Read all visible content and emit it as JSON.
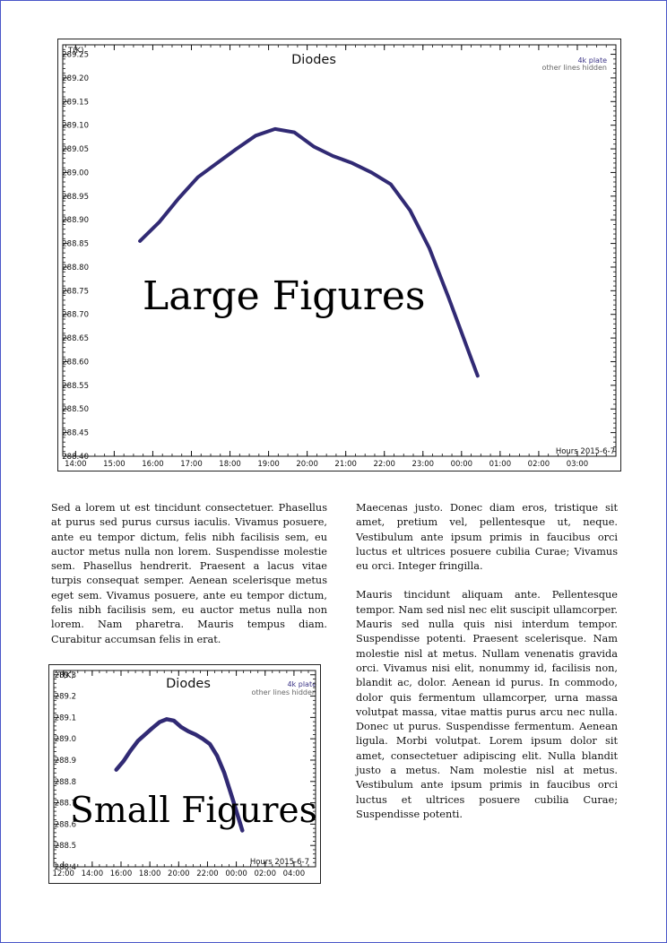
{
  "figures": [
    {
      "title": "Diodes",
      "ylabel": "T(K)",
      "legend_line1": "4k plate",
      "legend_line2": "other lines hidden",
      "xlabel": "Hours 2015-6-7",
      "overlay": "Large Figures",
      "line_color": "#312a74"
    },
    {
      "title": "Diodes",
      "ylabel": "T(K)",
      "legend_line1": "4k plate",
      "legend_line2": "other lines hidden",
      "xlabel": "Hours 2015-6-7",
      "overlay": "Small Figures",
      "line_color": "#312a74"
    }
  ],
  "chart_data": [
    {
      "type": "line",
      "title": "Diodes",
      "ylabel": "T(K)",
      "xlabel": "Hours 2015-6-7",
      "xlim": [
        "13:40",
        "04:00"
      ],
      "ylim": [
        288.4,
        289.27
      ],
      "x_ticks": [
        "14:00",
        "15:00",
        "16:00",
        "17:00",
        "18:00",
        "19:00",
        "20:00",
        "21:00",
        "22:00",
        "23:00",
        "00:00",
        "01:00",
        "02:00",
        "03:00"
      ],
      "y_ticks": [
        "288.40",
        "288.45",
        "288.50",
        "288.55",
        "288.60",
        "288.65",
        "288.70",
        "288.75",
        "288.80",
        "288.85",
        "288.90",
        "288.95",
        "289.00",
        "289.05",
        "289.10",
        "289.15",
        "289.20",
        "289.25"
      ],
      "series": [
        {
          "name": "4k plate",
          "x": [
            "15:40",
            "16:10",
            "16:40",
            "17:10",
            "17:40",
            "18:10",
            "18:40",
            "19:10",
            "19:40",
            "20:10",
            "20:40",
            "21:10",
            "21:40",
            "22:10",
            "22:40",
            "23:10",
            "23:40",
            "00:10",
            "00:25"
          ],
          "values": [
            288.855,
            288.895,
            288.945,
            288.99,
            289.02,
            289.05,
            289.078,
            289.092,
            289.085,
            289.055,
            289.035,
            289.02,
            289.0,
            288.975,
            288.92,
            288.84,
            288.735,
            288.625,
            288.57
          ]
        }
      ]
    },
    {
      "type": "line",
      "title": "Diodes",
      "ylabel": "T(K)",
      "xlabel": "Hours 2015-6-7",
      "xlim": [
        "11:20",
        "05:30"
      ],
      "ylim": [
        288.4,
        289.32
      ],
      "x_ticks": [
        "12:00",
        "14:00",
        "16:00",
        "18:00",
        "20:00",
        "22:00",
        "00:00",
        "02:00",
        "04:00"
      ],
      "y_ticks": [
        "288.4",
        "288.5",
        "288.6",
        "288.7",
        "288.8",
        "288.9",
        "289.0",
        "289.1",
        "289.2",
        "289.3"
      ],
      "series": [
        {
          "name": "4k plate",
          "x": [
            "15:40",
            "16:10",
            "16:40",
            "17:10",
            "17:40",
            "18:10",
            "18:40",
            "19:10",
            "19:40",
            "20:10",
            "20:40",
            "21:10",
            "21:40",
            "22:10",
            "22:40",
            "23:10",
            "23:40",
            "00:10",
            "00:25"
          ],
          "values": [
            288.855,
            288.895,
            288.945,
            288.99,
            289.02,
            289.05,
            289.078,
            289.092,
            289.085,
            289.055,
            289.035,
            289.02,
            289.0,
            288.975,
            288.92,
            288.84,
            288.735,
            288.625,
            288.57
          ]
        }
      ]
    }
  ],
  "text": {
    "left_p1": "Sed a lorem ut est tincidunt consectetuer. Phasellus at purus sed purus cursus iaculis. Vivamus posuere, ante eu tempor dictum, felis nibh facilisis sem, eu auctor metus nulla non lorem. Suspendisse molestie sem. Phasellus hendrerit. Praesent a lacus vitae turpis consequat semper. Aenean scelerisque metus eget sem. Vivamus posuere, ante eu tempor dictum, felis nibh facilisis sem, eu auctor metus nulla non lorem. Nam pharetra. Mauris tempus diam. Curabitur accumsan felis in erat.",
    "right_p1": "Maecenas justo. Donec diam eros, tristique sit amet, pretium vel, pellentesque ut, neque. Vestibulum ante ipsum primis in faucibus orci luctus et ultrices posuere cubilia Curae; Vivamus eu orci. Integer fringilla.",
    "right_p2": "Mauris tincidunt aliquam ante. Pellentesque tempor. Nam sed nisl nec elit suscipit ullamcorper. Mauris sed nulla quis nisi interdum tempor. Suspendisse potenti. Praesent scelerisque. Nam molestie nisl at metus. Nullam venenatis gravida orci. Vivamus nisi elit, nonummy id, facilisis non, blandit ac, dolor. Aenean id purus. In commodo, dolor quis fermentum ullamcorper, urna massa volutpat massa, vitae mattis purus arcu nec nulla. Donec ut purus. Suspendisse fermentum. Aenean ligula. Morbi volutpat. Lorem ipsum dolor sit amet, consectetuer adipiscing elit. Nulla blandit justo a metus. Nam molestie nisl at metus. Vestibulum ante ipsum primis in faucibus orci luctus et ultrices posuere cubilia Curae; Suspendisse potenti."
  }
}
